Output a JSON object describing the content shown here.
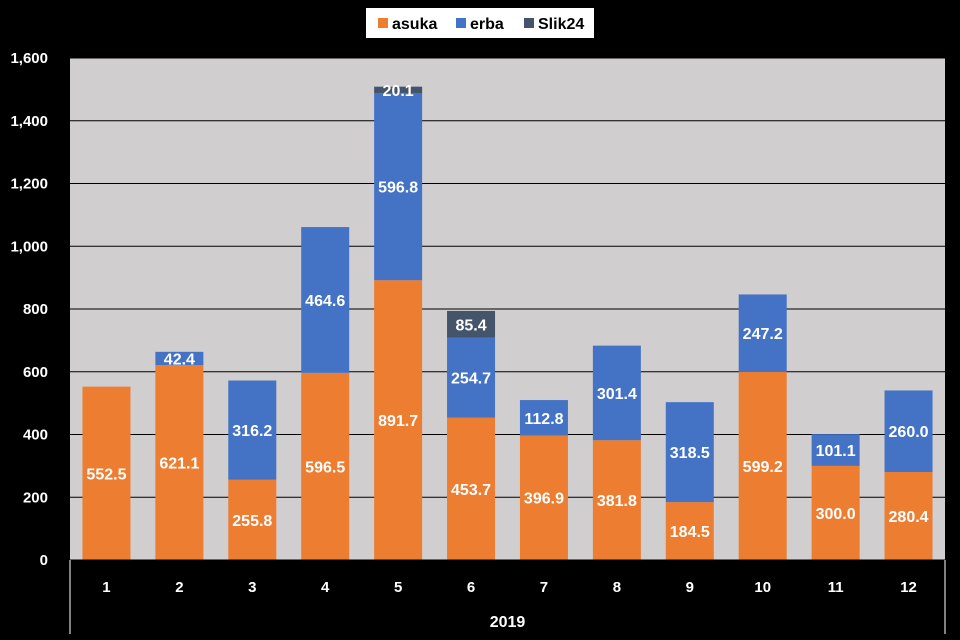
{
  "chart_data": {
    "type": "bar",
    "stacked": true,
    "categories": [
      "1",
      "2",
      "3",
      "4",
      "5",
      "6",
      "7",
      "8",
      "9",
      "10",
      "11",
      "12"
    ],
    "group_label": "2019",
    "series": [
      {
        "name": "asuka",
        "color": "#ED7D31",
        "values": [
          552.5,
          621.1,
          255.8,
          596.5,
          891.7,
          453.7,
          396.9,
          381.8,
          184.5,
          599.2,
          300.0,
          280.4
        ],
        "labels": [
          "552.5",
          "621.1",
          "255.8",
          "596.5",
          "891.7",
          "453.7",
          "396.9",
          "381.8",
          "184.5",
          "599.2",
          "300.0",
          "280.4"
        ]
      },
      {
        "name": "erba",
        "color": "#4472C4",
        "values": [
          0,
          42.4,
          316.2,
          464.6,
          596.8,
          254.7,
          112.8,
          301.4,
          318.5,
          247.2,
          101.1,
          260.0
        ],
        "labels": [
          "",
          "42.4",
          "316.2",
          "464.6",
          "596.8",
          "254.7",
          "112.8",
          "301.4",
          "318.5",
          "247.2",
          "101.1",
          "260.0"
        ]
      },
      {
        "name": "Slik24",
        "color": "#44546A",
        "values": [
          0,
          0,
          0,
          0,
          20.1,
          85.4,
          0,
          0,
          0,
          0,
          0,
          0
        ],
        "labels": [
          "",
          "",
          "",
          "",
          "20.1",
          "85.4",
          "",
          "",
          "",
          "",
          "",
          ""
        ]
      }
    ],
    "ylim": [
      0,
      1600
    ],
    "yticks": [
      0,
      200,
      400,
      600,
      800,
      1000,
      1200,
      1400,
      1600
    ],
    "ytick_labels": [
      "0",
      "200",
      "400",
      "600",
      "800",
      "1,000",
      "1,200",
      "1,400",
      "1,600"
    ],
    "grid": true,
    "legend_position": "top-center",
    "plot_background": "#D0CECE",
    "page_background": "#000000"
  }
}
